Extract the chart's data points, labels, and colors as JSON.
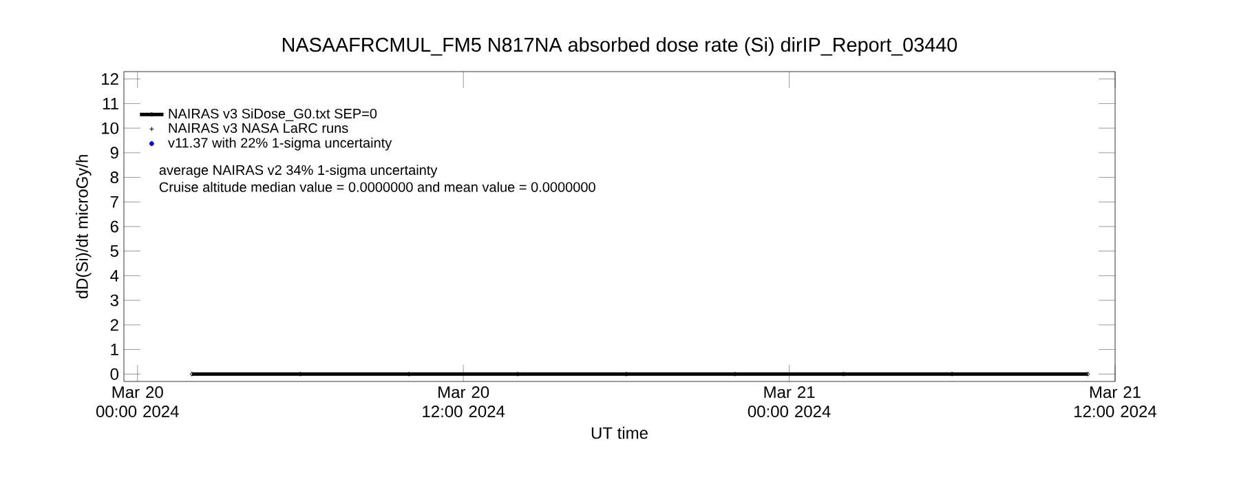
{
  "chart_data": {
    "type": "line",
    "title": "NASAAFRCMUL_FM5 N817NA absorbed dose rate (Si) dirIP_Report_03440",
    "xlabel": "UT time",
    "ylabel": "dD(Si)/dt microGy/h",
    "xlim": [
      "2024-03-19T23:30",
      "2024-03-21T12:00"
    ],
    "xticks": [
      {
        "value": "2024-03-20T00:00",
        "label": "Mar 20 00:00 2024"
      },
      {
        "value": "2024-03-20T12:00",
        "label": "Mar 20 12:00 2024"
      },
      {
        "value": "2024-03-21T00:00",
        "label": "Mar 21 00:00 2024"
      },
      {
        "value": "2024-03-21T12:00",
        "label": "Mar 21 12:00 2024"
      }
    ],
    "ylim": [
      -0.3,
      12.3
    ],
    "yticks": [
      0,
      1,
      2,
      3,
      4,
      5,
      6,
      7,
      8,
      9,
      10,
      11,
      12
    ],
    "legend": "top left",
    "line_style": "solid",
    "series": [
      {
        "name": "NAIRAS v3 SiDose_G0.txt SEP=0",
        "color": "#000000",
        "marker": "diamond",
        "x": [
          "2024-03-20T02:00",
          "2024-03-20T06:00",
          "2024-03-20T10:00",
          "2024-03-20T14:00",
          "2024-03-20T18:00",
          "2024-03-20T22:00",
          "2024-03-21T02:00",
          "2024-03-21T06:00",
          "2024-03-21T11:00"
        ],
        "values": [
          0,
          0,
          0,
          0,
          0,
          0,
          0,
          0,
          0
        ]
      },
      {
        "name": "NAIRAS v3 NASA LaRC runs",
        "color": "#000000",
        "marker": "cross"
      },
      {
        "name": "v11.37 with 22% 1-sigma uncertainty",
        "color": "#0000ff",
        "marker": "circle"
      }
    ],
    "annotations": [
      "average NAIRAS v2 34% 1-sigma uncertainty",
      "Cruise altitude median value = 0.0000000 and mean value = 0.0000000"
    ]
  }
}
